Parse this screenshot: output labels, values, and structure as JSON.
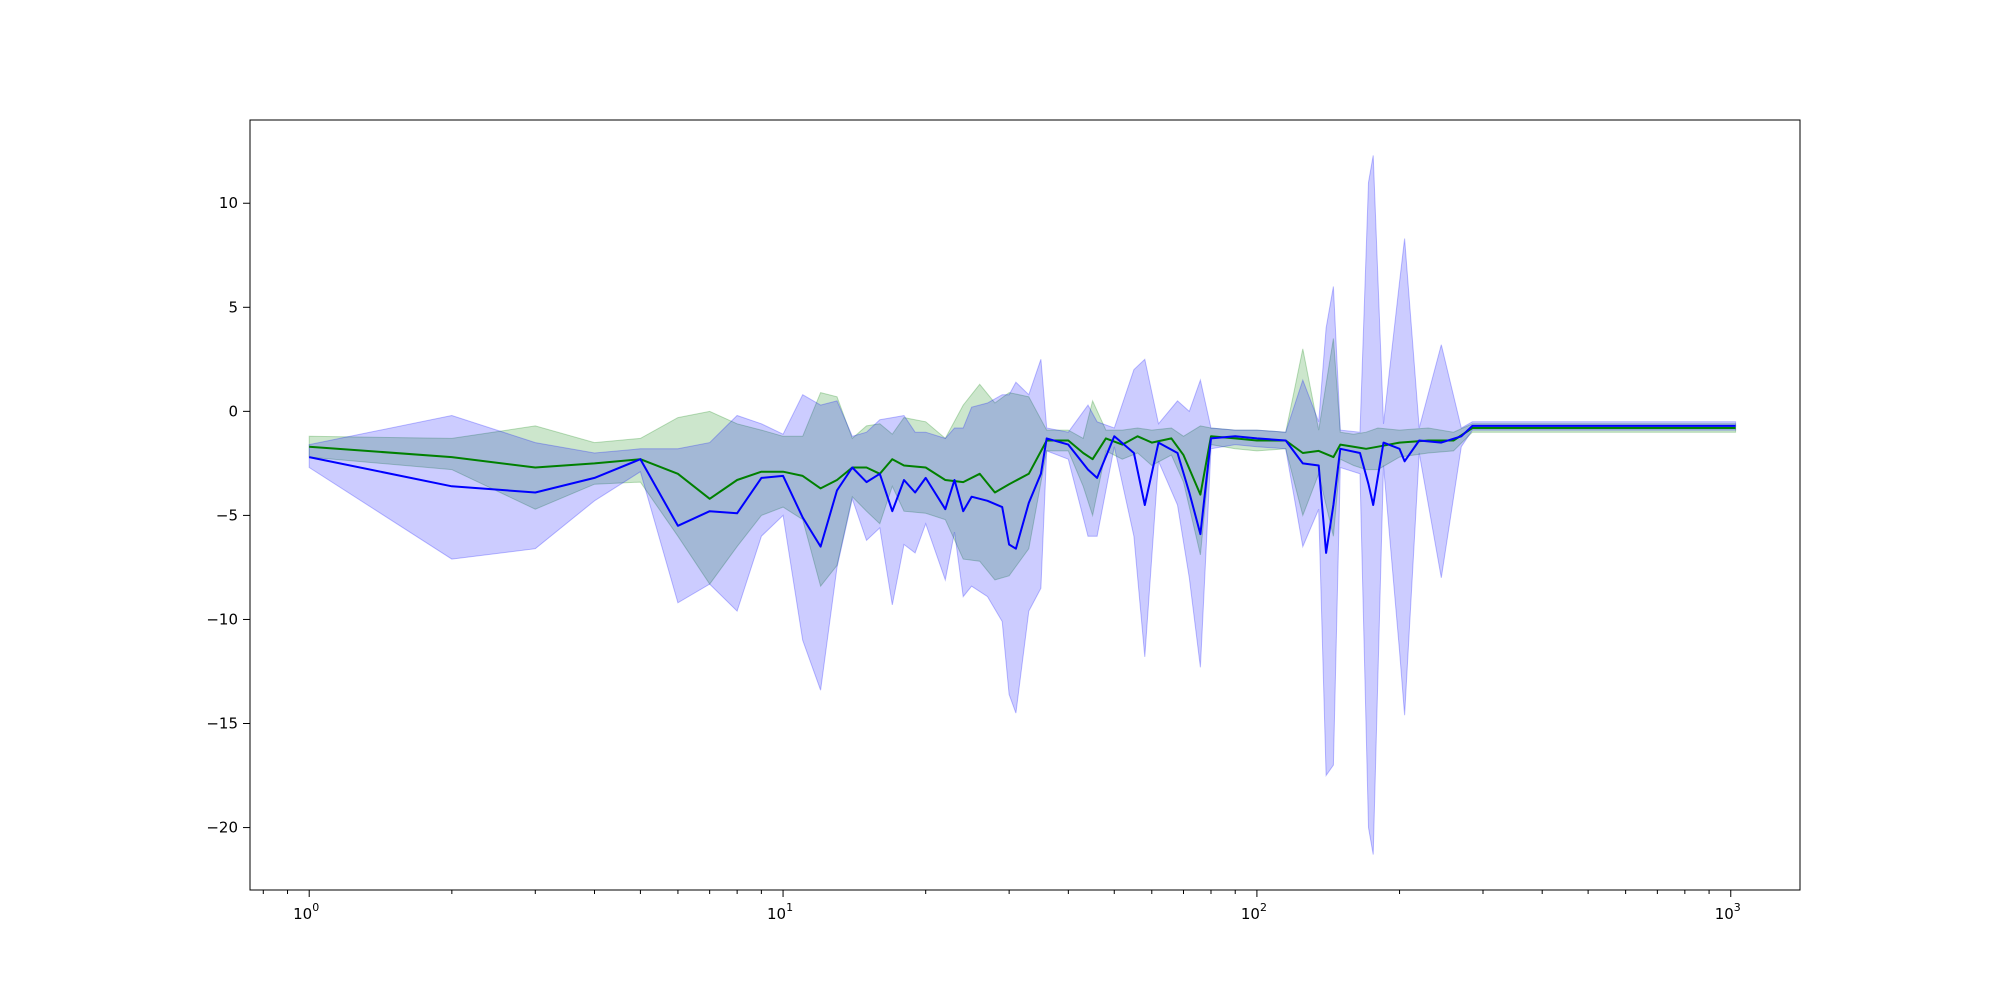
{
  "chart_data": {
    "type": "line",
    "title": "",
    "xlabel": "",
    "ylabel": "",
    "x_scale": "log",
    "xlim": [
      0.75,
      1400
    ],
    "ylim": [
      -23,
      14
    ],
    "grid": false,
    "legend": "none",
    "x_ticks": [
      {
        "value": 1,
        "base": "10",
        "exp": "0"
      },
      {
        "value": 10,
        "base": "10",
        "exp": "1"
      },
      {
        "value": 100,
        "base": "10",
        "exp": "2"
      },
      {
        "value": 1000,
        "base": "10",
        "exp": "3"
      }
    ],
    "y_ticks": [
      {
        "value": 10,
        "label": "10"
      },
      {
        "value": 5,
        "label": "5"
      },
      {
        "value": 0,
        "label": "0"
      },
      {
        "value": -5,
        "label": "−5"
      },
      {
        "value": -10,
        "label": "−10"
      },
      {
        "value": -15,
        "label": "−15"
      },
      {
        "value": -20,
        "label": "−20"
      }
    ],
    "series": [
      {
        "color": "#008000",
        "band_color": "#008000",
        "band_opacity": 0.2,
        "points": [
          [
            1,
            -1.7,
            -1.2,
            -2.2
          ],
          [
            2,
            -2.2,
            -1.3,
            -2.8
          ],
          [
            3,
            -2.7,
            -0.7,
            -4.7
          ],
          [
            4,
            -2.5,
            -1.5,
            -3.5
          ],
          [
            5,
            -2.3,
            -1.3,
            -3.4
          ],
          [
            6,
            -3.0,
            -0.3,
            -6.0
          ],
          [
            7,
            -4.2,
            0.0,
            -8.3
          ],
          [
            8,
            -3.3,
            -0.6,
            -6.5
          ],
          [
            9,
            -2.9,
            -0.9,
            -5.0
          ],
          [
            10,
            -2.9,
            -1.2,
            -4.6
          ],
          [
            11,
            -3.1,
            -1.2,
            -5.2
          ],
          [
            12,
            -3.7,
            0.9,
            -8.4
          ],
          [
            13,
            -3.3,
            0.7,
            -7.4
          ],
          [
            14,
            -2.7,
            -1.3,
            -4.1
          ],
          [
            15,
            -2.7,
            -0.7,
            -4.8
          ],
          [
            16,
            -3.0,
            -0.6,
            -5.4
          ],
          [
            17,
            -2.3,
            -1.1,
            -3.6
          ],
          [
            18,
            -2.6,
            -0.3,
            -4.8
          ],
          [
            20,
            -2.7,
            -0.5,
            -4.9
          ],
          [
            22,
            -3.3,
            -1.3,
            -5.2
          ],
          [
            24,
            -3.4,
            0.3,
            -7.1
          ],
          [
            26,
            -3.0,
            1.3,
            -7.2
          ],
          [
            28,
            -3.9,
            0.4,
            -8.1
          ],
          [
            30,
            -3.5,
            0.9,
            -7.9
          ],
          [
            33,
            -3.0,
            0.7,
            -6.6
          ],
          [
            36,
            -1.4,
            -0.9,
            -1.9
          ],
          [
            40,
            -1.4,
            -0.9,
            -1.9
          ],
          [
            43,
            -2.0,
            -1.3,
            -3.6
          ],
          [
            45,
            -2.3,
            0.5,
            -5.0
          ],
          [
            48,
            -1.3,
            -0.9,
            -1.9
          ],
          [
            52,
            -1.6,
            -0.9,
            -2.3
          ],
          [
            56,
            -1.2,
            -0.8,
            -2.0
          ],
          [
            60,
            -1.5,
            -0.9,
            -2.6
          ],
          [
            66,
            -1.3,
            -0.8,
            -2.1
          ],
          [
            70,
            -2.1,
            -1.2,
            -3.4
          ],
          [
            76,
            -4.0,
            -0.7,
            -6.9
          ],
          [
            80,
            -1.2,
            -0.8,
            -1.6
          ],
          [
            90,
            -1.3,
            -0.9,
            -1.8
          ],
          [
            100,
            -1.4,
            -0.9,
            -1.9
          ],
          [
            115,
            -1.4,
            -1.0,
            -1.8
          ],
          [
            125,
            -2.0,
            3.0,
            -5.0
          ],
          [
            135,
            -1.9,
            -0.9,
            -3.0
          ],
          [
            145,
            -2.2,
            3.5,
            -6.0
          ],
          [
            150,
            -1.6,
            -1.0,
            -2.3
          ],
          [
            160,
            -1.7,
            -1.1,
            -2.6
          ],
          [
            170,
            -1.8,
            -1.0,
            -2.8
          ],
          [
            180,
            -1.7,
            -0.8,
            -2.8
          ],
          [
            200,
            -1.5,
            -0.9,
            -2.2
          ],
          [
            230,
            -1.4,
            -0.8,
            -2.0
          ],
          [
            260,
            -1.4,
            -1.0,
            -1.9
          ],
          [
            285,
            -0.8,
            -0.6,
            -1.0
          ],
          [
            500,
            -0.8,
            -0.6,
            -1.0
          ],
          [
            1024,
            -0.8,
            -0.6,
            -1.0
          ]
        ]
      },
      {
        "color": "#0000ff",
        "band_color": "#0000ff",
        "band_opacity": 0.2,
        "points": [
          [
            1,
            -2.2,
            -1.6,
            -2.7
          ],
          [
            2,
            -3.6,
            -0.2,
            -7.1
          ],
          [
            3,
            -3.9,
            -1.5,
            -6.6
          ],
          [
            4,
            -3.2,
            -2.0,
            -4.3
          ],
          [
            5,
            -2.3,
            -1.8,
            -2.9
          ],
          [
            6,
            -5.5,
            -1.8,
            -9.2
          ],
          [
            7,
            -4.8,
            -1.5,
            -8.3
          ],
          [
            8,
            -4.9,
            -0.2,
            -9.6
          ],
          [
            9,
            -3.2,
            -0.6,
            -6.0
          ],
          [
            10,
            -3.1,
            -1.1,
            -5.0
          ],
          [
            11,
            -5.1,
            0.8,
            -11.0
          ],
          [
            12,
            -6.5,
            0.3,
            -13.4
          ],
          [
            13,
            -3.8,
            0.5,
            -7.5
          ],
          [
            14,
            -2.7,
            -1.2,
            -4.2
          ],
          [
            15,
            -3.4,
            -1.0,
            -6.2
          ],
          [
            16,
            -3.0,
            -0.4,
            -5.6
          ],
          [
            17,
            -4.8,
            -0.3,
            -9.3
          ],
          [
            18,
            -3.3,
            -0.2,
            -6.4
          ],
          [
            19,
            -3.9,
            -1.0,
            -6.8
          ],
          [
            20,
            -3.2,
            -1.0,
            -5.4
          ],
          [
            22,
            -4.7,
            -1.3,
            -8.1
          ],
          [
            23,
            -3.3,
            -0.8,
            -5.8
          ],
          [
            24,
            -4.8,
            -0.8,
            -8.9
          ],
          [
            25,
            -4.1,
            0.2,
            -8.4
          ],
          [
            27,
            -4.3,
            0.4,
            -8.9
          ],
          [
            29,
            -4.6,
            0.8,
            -10.1
          ],
          [
            30,
            -6.4,
            0.8,
            -13.6
          ],
          [
            31,
            -6.6,
            1.4,
            -14.5
          ],
          [
            33,
            -4.4,
            0.8,
            -9.6
          ],
          [
            35,
            -3.0,
            2.5,
            -8.5
          ],
          [
            36,
            -1.3,
            -0.8,
            -1.9
          ],
          [
            40,
            -1.6,
            -1.0,
            -2.3
          ],
          [
            44,
            -2.8,
            0.3,
            -6.0
          ],
          [
            46,
            -3.2,
            -0.5,
            -6.0
          ],
          [
            50,
            -1.2,
            -0.8,
            -1.7
          ],
          [
            55,
            -2.0,
            2.0,
            -6.0
          ],
          [
            58,
            -4.5,
            2.5,
            -11.8
          ],
          [
            62,
            -1.5,
            -0.6,
            -2.4
          ],
          [
            68,
            -2.0,
            0.5,
            -4.5
          ],
          [
            72,
            -3.9,
            0.0,
            -8.0
          ],
          [
            76,
            -5.9,
            1.5,
            -12.3
          ],
          [
            80,
            -1.3,
            -0.8,
            -1.8
          ],
          [
            90,
            -1.2,
            -0.9,
            -1.6
          ],
          [
            100,
            -1.3,
            -0.9,
            -1.7
          ],
          [
            115,
            -1.4,
            -1.0,
            -1.8
          ],
          [
            125,
            -2.5,
            1.5,
            -6.5
          ],
          [
            135,
            -2.6,
            -0.5,
            -4.7
          ],
          [
            140,
            -6.8,
            4.0,
            -17.5
          ],
          [
            145,
            -4.5,
            6.0,
            -17.0
          ],
          [
            150,
            -1.8,
            -0.9,
            -2.7
          ],
          [
            165,
            -2.0,
            -1.0,
            -3.0
          ],
          [
            172,
            -3.5,
            11.0,
            -20.0
          ],
          [
            176,
            -4.5,
            12.3,
            -21.3
          ],
          [
            185,
            -1.5,
            -0.6,
            -2.6
          ],
          [
            200,
            -1.8,
            6.2,
            -11.5
          ],
          [
            205,
            -2.4,
            8.3,
            -14.6
          ],
          [
            220,
            -1.4,
            -0.8,
            -2.0
          ],
          [
            245,
            -1.5,
            3.2,
            -8.0
          ],
          [
            270,
            -1.2,
            -0.8,
            -1.7
          ],
          [
            285,
            -0.7,
            -0.5,
            -0.9
          ],
          [
            500,
            -0.7,
            -0.5,
            -0.9
          ],
          [
            1024,
            -0.7,
            -0.5,
            -0.9
          ]
        ]
      }
    ]
  }
}
